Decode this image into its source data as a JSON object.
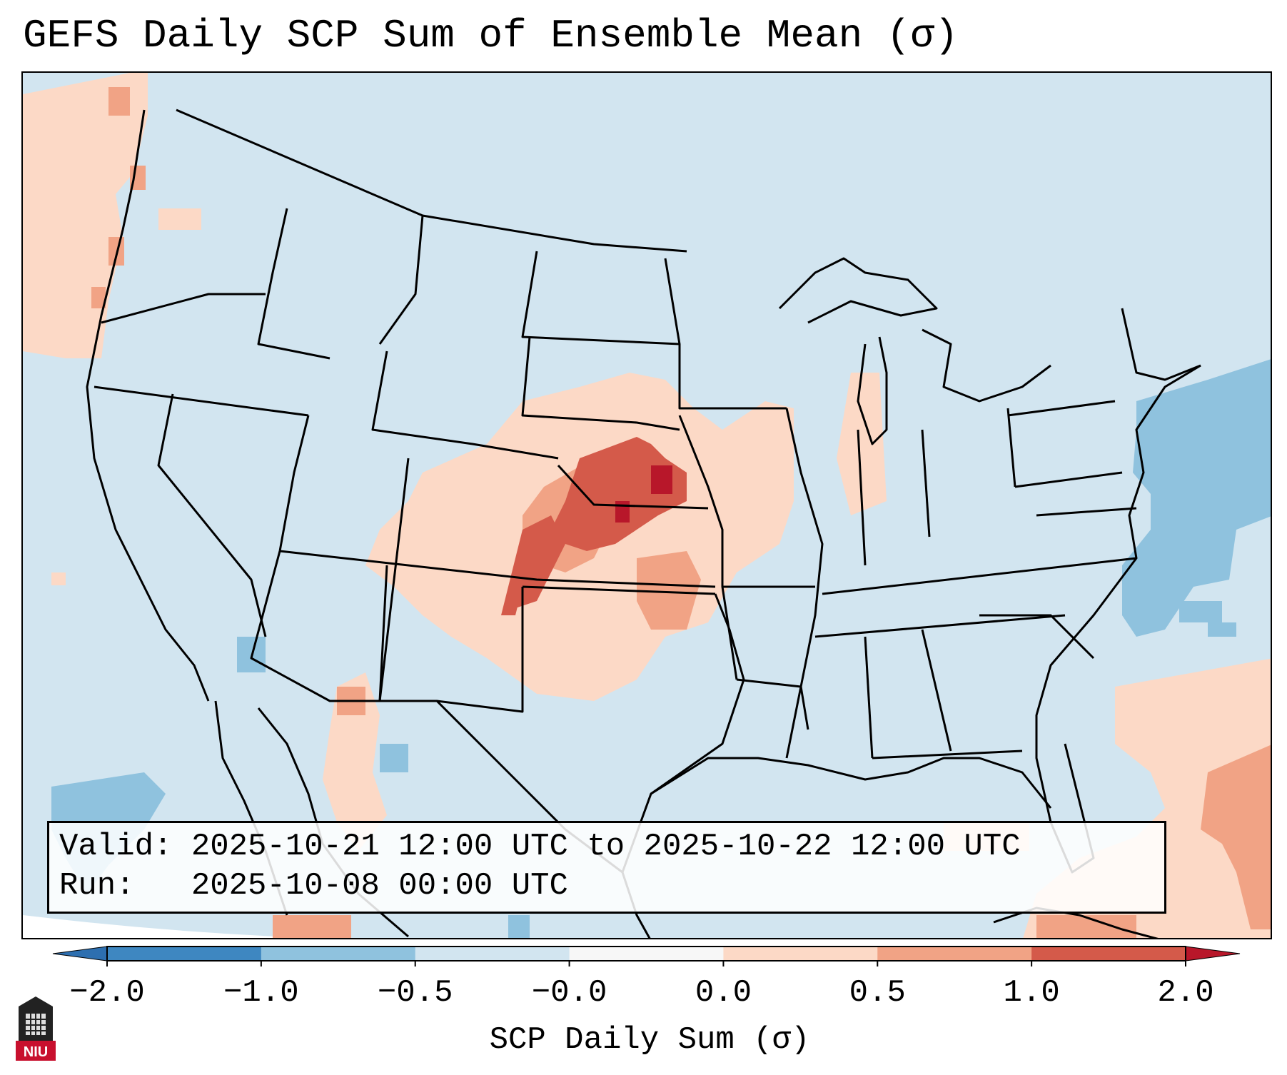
{
  "title": "GEFS Daily SCP Sum of Ensemble Mean (σ)",
  "info": {
    "valid_label": "Valid:",
    "valid_value": "2025-10-21 12:00 UTC to 2025-10-22 12:00 UTC",
    "run_label": "Run:",
    "run_value": "2025-10-08 00:00 UTC"
  },
  "colorbar": {
    "label": "SCP Daily Sum (σ)",
    "ticks": [
      "−2.0",
      "−1.0",
      "−0.5",
      "−0.0",
      "0.0",
      "0.5",
      "1.0",
      "2.0"
    ],
    "colors": [
      "#3e87c1",
      "#8fc2de",
      "#d2e5f0",
      "#f7f7f7",
      "#fcd9c6",
      "#f1a385",
      "#d45a4a"
    ],
    "under_color": "#2d6fb0",
    "over_color": "#b8172a"
  },
  "map": {
    "region": "Continental United States",
    "background_color": "#d2e5f0",
    "max_anomaly_area": "Kansas / Nebraska border",
    "max_value_sigma": 2.0
  },
  "logo": {
    "text": "NIU"
  }
}
